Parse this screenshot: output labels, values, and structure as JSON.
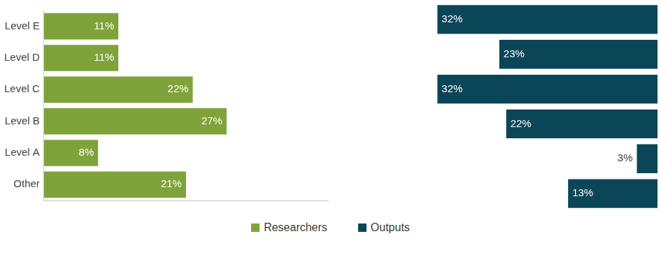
{
  "chart_data": {
    "type": "bar",
    "orientation": "horizontal",
    "categories": [
      "Level E",
      "Level D",
      "Level C",
      "Level B",
      "Level A",
      "Other"
    ],
    "series": [
      {
        "name": "Researchers",
        "color": "#7fa33b",
        "values": [
          11,
          11,
          22,
          27,
          8,
          21
        ],
        "value_labels": [
          "11%",
          "11%",
          "22%",
          "27%",
          "8%",
          "21%"
        ]
      },
      {
        "name": "Outputs",
        "color": "#0b4658",
        "values": [
          32,
          23,
          32,
          22,
          3,
          13
        ],
        "value_labels": [
          "32%",
          "23%",
          "32%",
          "22%",
          "3%",
          "13%"
        ]
      }
    ],
    "xlim": [
      0,
      42
    ],
    "grid": false,
    "legend": "bottom",
    "data_labels": true,
    "tick_labels": "y"
  }
}
